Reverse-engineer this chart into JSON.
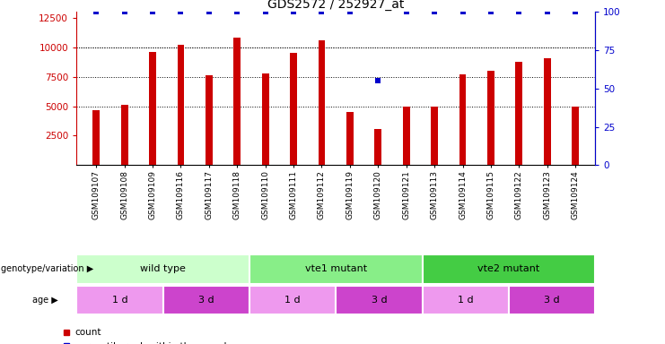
{
  "title": "GDS2572 / 252927_at",
  "samples": [
    "GSM109107",
    "GSM109108",
    "GSM109109",
    "GSM109116",
    "GSM109117",
    "GSM109118",
    "GSM109110",
    "GSM109111",
    "GSM109112",
    "GSM109119",
    "GSM109120",
    "GSM109121",
    "GSM109113",
    "GSM109114",
    "GSM109115",
    "GSM109122",
    "GSM109123",
    "GSM109124"
  ],
  "counts": [
    4700,
    5100,
    9600,
    10200,
    7600,
    10800,
    7800,
    9500,
    10600,
    4500,
    3100,
    5000,
    5000,
    7700,
    8000,
    8800,
    9100,
    5000
  ],
  "percentile_ranks": [
    100,
    100,
    100,
    100,
    100,
    100,
    100,
    100,
    100,
    100,
    55,
    100,
    100,
    100,
    100,
    100,
    100,
    100
  ],
  "bar_color": "#cc0000",
  "dot_color": "#0000cc",
  "ylim_left": [
    0,
    13000
  ],
  "ylim_right": [
    0,
    100
  ],
  "yticks_left": [
    2500,
    5000,
    7500,
    10000,
    12500
  ],
  "yticks_right": [
    0,
    25,
    50,
    75,
    100
  ],
  "grid_values": [
    5000,
    7500,
    10000
  ],
  "genotype_groups": [
    {
      "label": "wild type",
      "start": 0,
      "end": 6,
      "color": "#ccffcc"
    },
    {
      "label": "vte1 mutant",
      "start": 6,
      "end": 12,
      "color": "#88ee88"
    },
    {
      "label": "vte2 mutant",
      "start": 12,
      "end": 18,
      "color": "#44cc44"
    }
  ],
  "age_groups": [
    {
      "label": "1 d",
      "start": 0,
      "end": 3,
      "color": "#ee99ee"
    },
    {
      "label": "3 d",
      "start": 3,
      "end": 6,
      "color": "#cc44cc"
    },
    {
      "label": "1 d",
      "start": 6,
      "end": 9,
      "color": "#ee99ee"
    },
    {
      "label": "3 d",
      "start": 9,
      "end": 12,
      "color": "#cc44cc"
    },
    {
      "label": "1 d",
      "start": 12,
      "end": 15,
      "color": "#ee99ee"
    },
    {
      "label": "3 d",
      "start": 15,
      "end": 18,
      "color": "#cc44cc"
    }
  ],
  "bar_width": 0.25,
  "figsize": [
    7.41,
    3.84
  ],
  "dpi": 100
}
